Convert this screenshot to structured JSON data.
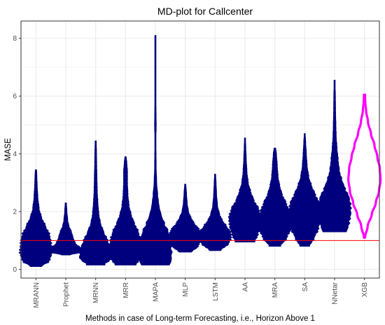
{
  "chart_data": {
    "type": "violin",
    "title": "MD-plot for Callcenter",
    "xlabel": "Methods in case of Long-term Forecasting, i.e., Horizon Above 1",
    "ylabel": "MASE",
    "ylim": [
      -0.3,
      8.6
    ],
    "yticks": [
      0,
      2,
      4,
      6,
      8
    ],
    "grid": true,
    "legend": "none",
    "reference_line": {
      "y": 1.0,
      "color": "#ff0000"
    },
    "categories": [
      "MRANN",
      "Prophet",
      "MRNN",
      "MRR",
      "MAPA",
      "MLP",
      "LSTM",
      "AA",
      "MRA",
      "SA",
      "NNetar",
      "XGB"
    ],
    "colors": {
      "fill": "#00007f",
      "highlight_fill": "#ffffff",
      "highlight_outline": "#ff00ff",
      "panel_border": "#333333",
      "grid": "#ebebeb"
    },
    "series": [
      {
        "name": "MRANN",
        "min": 0.1,
        "max": 3.45,
        "profile": [
          [
            0.1,
            0.35
          ],
          [
            0.3,
            0.85
          ],
          [
            0.6,
            1.0
          ],
          [
            0.9,
            0.95
          ],
          [
            1.2,
            0.85
          ],
          [
            1.5,
            0.6
          ],
          [
            1.8,
            0.35
          ],
          [
            2.1,
            0.2
          ],
          [
            2.5,
            0.12
          ],
          [
            2.9,
            0.08
          ],
          [
            3.2,
            0.06
          ],
          [
            3.45,
            0.04
          ]
        ]
      },
      {
        "name": "Prophet",
        "min": 0.5,
        "max": 2.3,
        "profile": [
          [
            0.5,
            0.25
          ],
          [
            0.6,
            1.0
          ],
          [
            0.75,
            0.9
          ],
          [
            0.9,
            0.6
          ],
          [
            1.1,
            0.45
          ],
          [
            1.3,
            0.35
          ],
          [
            1.5,
            0.2
          ],
          [
            1.7,
            0.12
          ],
          [
            2.0,
            0.07
          ],
          [
            2.3,
            0.04
          ]
        ]
      },
      {
        "name": "MRNN",
        "min": 0.15,
        "max": 4.45,
        "profile": [
          [
            0.15,
            0.55
          ],
          [
            0.4,
            1.0
          ],
          [
            0.7,
            0.95
          ],
          [
            1.0,
            0.75
          ],
          [
            1.3,
            0.5
          ],
          [
            1.6,
            0.3
          ],
          [
            1.9,
            0.2
          ],
          [
            2.3,
            0.14
          ],
          [
            2.7,
            0.1
          ],
          [
            3.2,
            0.08
          ],
          [
            3.7,
            0.06
          ],
          [
            4.1,
            0.05
          ],
          [
            4.45,
            0.03
          ]
        ]
      },
      {
        "name": "MRR",
        "min": 0.15,
        "max": 3.9,
        "profile": [
          [
            0.15,
            0.65
          ],
          [
            0.4,
            0.95
          ],
          [
            0.7,
            1.0
          ],
          [
            1.0,
            0.95
          ],
          [
            1.3,
            0.8
          ],
          [
            1.6,
            0.55
          ],
          [
            1.9,
            0.35
          ],
          [
            2.2,
            0.22
          ],
          [
            2.6,
            0.15
          ],
          [
            3.0,
            0.12
          ],
          [
            3.4,
            0.12
          ],
          [
            3.7,
            0.08
          ],
          [
            3.9,
            0.04
          ]
        ]
      },
      {
        "name": "MAPA",
        "min": 0.15,
        "max": 8.1,
        "profile": [
          [
            0.15,
            0.9
          ],
          [
            0.4,
            1.0
          ],
          [
            0.7,
            1.0
          ],
          [
            1.0,
            0.95
          ],
          [
            1.3,
            0.8
          ],
          [
            1.6,
            0.55
          ],
          [
            1.9,
            0.35
          ],
          [
            2.2,
            0.22
          ],
          [
            2.6,
            0.14
          ],
          [
            3.0,
            0.08
          ],
          [
            3.5,
            0.05
          ],
          [
            4.0,
            0.04
          ],
          [
            4.5,
            0.03
          ],
          [
            5.0,
            0.05
          ],
          [
            5.5,
            0.04
          ],
          [
            6.0,
            0.02
          ],
          [
            7.0,
            0.02
          ],
          [
            7.5,
            0.03
          ],
          [
            8.1,
            0.02
          ]
        ]
      },
      {
        "name": "MLP",
        "min": 0.6,
        "max": 2.95,
        "profile": [
          [
            0.6,
            0.4
          ],
          [
            0.8,
            0.8
          ],
          [
            1.0,
            0.95
          ],
          [
            1.2,
            1.0
          ],
          [
            1.4,
            0.85
          ],
          [
            1.6,
            0.55
          ],
          [
            1.8,
            0.35
          ],
          [
            2.0,
            0.2
          ],
          [
            2.3,
            0.12
          ],
          [
            2.6,
            0.08
          ],
          [
            2.95,
            0.04
          ]
        ]
      },
      {
        "name": "LSTM",
        "min": 0.65,
        "max": 3.3,
        "profile": [
          [
            0.65,
            0.35
          ],
          [
            0.9,
            0.85
          ],
          [
            1.1,
            1.0
          ],
          [
            1.3,
            0.95
          ],
          [
            1.5,
            0.7
          ],
          [
            1.7,
            0.45
          ],
          [
            1.9,
            0.28
          ],
          [
            2.2,
            0.15
          ],
          [
            2.6,
            0.09
          ],
          [
            3.0,
            0.06
          ],
          [
            3.3,
            0.03
          ]
        ]
      },
      {
        "name": "AA",
        "min": 0.95,
        "max": 4.55,
        "profile": [
          [
            0.95,
            0.6
          ],
          [
            1.2,
            0.8
          ],
          [
            1.5,
            0.95
          ],
          [
            1.8,
            1.0
          ],
          [
            2.1,
            0.85
          ],
          [
            2.4,
            0.55
          ],
          [
            2.7,
            0.35
          ],
          [
            3.0,
            0.2
          ],
          [
            3.4,
            0.12
          ],
          [
            3.8,
            0.08
          ],
          [
            4.2,
            0.05
          ],
          [
            4.55,
            0.03
          ]
        ]
      },
      {
        "name": "MRA",
        "min": 0.8,
        "max": 4.2,
        "profile": [
          [
            0.8,
            0.35
          ],
          [
            1.1,
            0.75
          ],
          [
            1.4,
            1.0
          ],
          [
            1.7,
            1.0
          ],
          [
            2.0,
            0.9
          ],
          [
            2.3,
            0.7
          ],
          [
            2.6,
            0.45
          ],
          [
            2.9,
            0.3
          ],
          [
            3.2,
            0.2
          ],
          [
            3.6,
            0.15
          ],
          [
            4.0,
            0.1
          ],
          [
            4.2,
            0.05
          ]
        ]
      },
      {
        "name": "SA",
        "min": 0.8,
        "max": 4.7,
        "profile": [
          [
            0.8,
            0.3
          ],
          [
            1.1,
            0.6
          ],
          [
            1.4,
            0.85
          ],
          [
            1.7,
            0.95
          ],
          [
            2.0,
            1.0
          ],
          [
            2.3,
            0.9
          ],
          [
            2.6,
            0.65
          ],
          [
            2.9,
            0.42
          ],
          [
            3.2,
            0.25
          ],
          [
            3.6,
            0.15
          ],
          [
            4.0,
            0.1
          ],
          [
            4.4,
            0.06
          ],
          [
            4.7,
            0.03
          ]
        ]
      },
      {
        "name": "NNetar",
        "min": 1.3,
        "max": 6.55,
        "profile": [
          [
            1.3,
            0.75
          ],
          [
            1.6,
            0.9
          ],
          [
            1.9,
            1.0
          ],
          [
            2.2,
            1.0
          ],
          [
            2.5,
            0.9
          ],
          [
            2.8,
            0.65
          ],
          [
            3.1,
            0.45
          ],
          [
            3.4,
            0.3
          ],
          [
            3.8,
            0.22
          ],
          [
            4.2,
            0.15
          ],
          [
            4.6,
            0.1
          ],
          [
            5.0,
            0.08
          ],
          [
            5.5,
            0.06
          ],
          [
            6.0,
            0.05
          ],
          [
            6.55,
            0.02
          ]
        ]
      },
      {
        "name": "XGB",
        "min": 1.1,
        "max": 6.05,
        "profile": [
          [
            1.1,
            0.03
          ],
          [
            1.5,
            0.2
          ],
          [
            1.9,
            0.45
          ],
          [
            2.3,
            0.7
          ],
          [
            2.7,
            0.9
          ],
          [
            3.1,
            1.0
          ],
          [
            3.5,
            0.95
          ],
          [
            3.9,
            0.8
          ],
          [
            4.3,
            0.62
          ],
          [
            4.7,
            0.4
          ],
          [
            5.1,
            0.22
          ],
          [
            5.5,
            0.1
          ],
          [
            5.8,
            0.05
          ],
          [
            6.05,
            0.02
          ]
        ]
      }
    ]
  }
}
